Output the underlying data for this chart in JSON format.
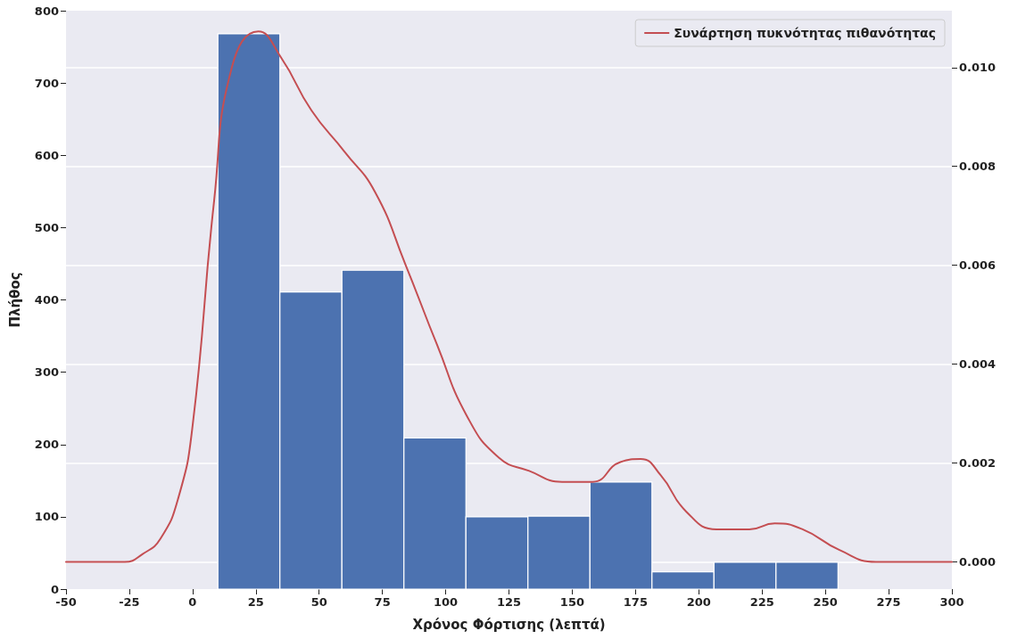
{
  "chart_data": {
    "type": "histogram",
    "xlabel": "Χρόνος Φόρτισης (λεπτά)",
    "ylabel": "Πλήθος",
    "xlim": [
      -50,
      300
    ],
    "xticks": [
      -50,
      -25,
      0,
      25,
      50,
      75,
      100,
      125,
      150,
      175,
      200,
      225,
      250,
      275,
      300
    ],
    "ylim": [
      0,
      800
    ],
    "yticks": [
      0,
      100,
      200,
      300,
      400,
      500,
      600,
      700,
      800
    ],
    "y2lim": [
      -0.00055,
      0.01115
    ],
    "y2ticks": [
      {
        "value": 0,
        "label": "0.000"
      },
      {
        "value": 0.002,
        "label": "0.002"
      },
      {
        "value": 0.004,
        "label": "0.004"
      },
      {
        "value": 0.006,
        "label": "0.006"
      },
      {
        "value": 0.008,
        "label": "0.008"
      },
      {
        "value": 0.01,
        "label": "0.010"
      }
    ],
    "grid": "y2",
    "legend": "top right",
    "marker": "none",
    "line_style": "solid",
    "series": [
      {
        "color": "#4c72b0",
        "bins": [
          10,
          34.5,
          59,
          83.5,
          108,
          132.5,
          157,
          181.5,
          206,
          230.5,
          255
        ],
        "values": [
          768,
          411,
          441,
          209,
          100,
          101,
          148,
          24,
          37,
          37
        ]
      },
      {
        "type": "line",
        "name": "Συνάρτηση πυκνότητας πιθανότητας",
        "color": "#c44e52",
        "axis": "y2",
        "x": [
          -50,
          -37,
          -26.8,
          -19.7,
          -12.7,
          -5.6,
          0,
          8.5,
          15.5,
          26,
          35,
          47,
          60,
          72,
          84,
          96.6,
          108.6,
          121,
          133,
          146,
          158,
          169,
          177,
          185,
          195,
          207,
          220,
          230,
          241,
          255.6,
          270,
          283,
          300
        ],
        "values": [
          0,
          0,
          0,
          0.00016,
          0.00047,
          0.0013,
          0.00275,
          0.0073,
          0.01,
          0.01073,
          0.0102,
          0.00913,
          0.0083,
          0.00749,
          0.00603,
          0.00439,
          0.00293,
          0.00211,
          0.00184,
          0.00162,
          0.00162,
          0.00202,
          0.00208,
          0.00175,
          0.00102,
          0.00066,
          0.00066,
          0.00078,
          0.00066,
          0.00024,
          0,
          0,
          0
        ]
      }
    ]
  }
}
